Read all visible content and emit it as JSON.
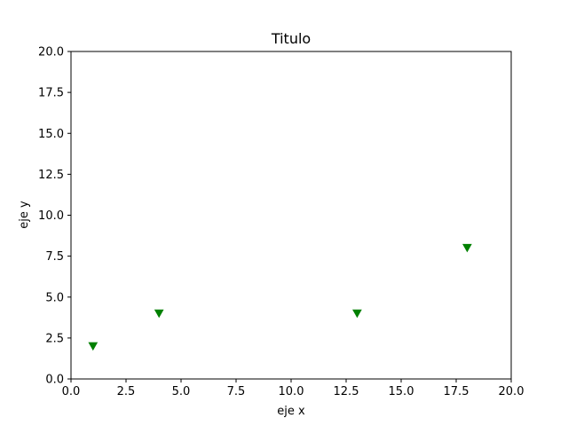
{
  "chart_data": {
    "type": "scatter",
    "title": "Titulo",
    "xlabel": "eje x",
    "ylabel": "eje y",
    "xlim": [
      0,
      20
    ],
    "ylim": [
      0,
      20
    ],
    "xticks": [
      0,
      2.5,
      5,
      7.5,
      10,
      12.5,
      15,
      17.5,
      20
    ],
    "xtick_labels": [
      "0.0",
      "2.5",
      "5.0",
      "7.5",
      "10.0",
      "12.5",
      "15.0",
      "17.5",
      "20.0"
    ],
    "yticks": [
      0,
      2.5,
      5,
      7.5,
      10,
      12.5,
      15,
      17.5,
      20
    ],
    "ytick_labels": [
      "0.0",
      "2.5",
      "5.0",
      "7.5",
      "10.0",
      "12.5",
      "15.0",
      "17.5",
      "20.0"
    ],
    "grid": false,
    "marker": "triangle-down",
    "color": "#008000",
    "points": [
      {
        "x": 1,
        "y": 2
      },
      {
        "x": 4,
        "y": 4
      },
      {
        "x": 13,
        "y": 4
      },
      {
        "x": 18,
        "y": 8
      }
    ]
  }
}
